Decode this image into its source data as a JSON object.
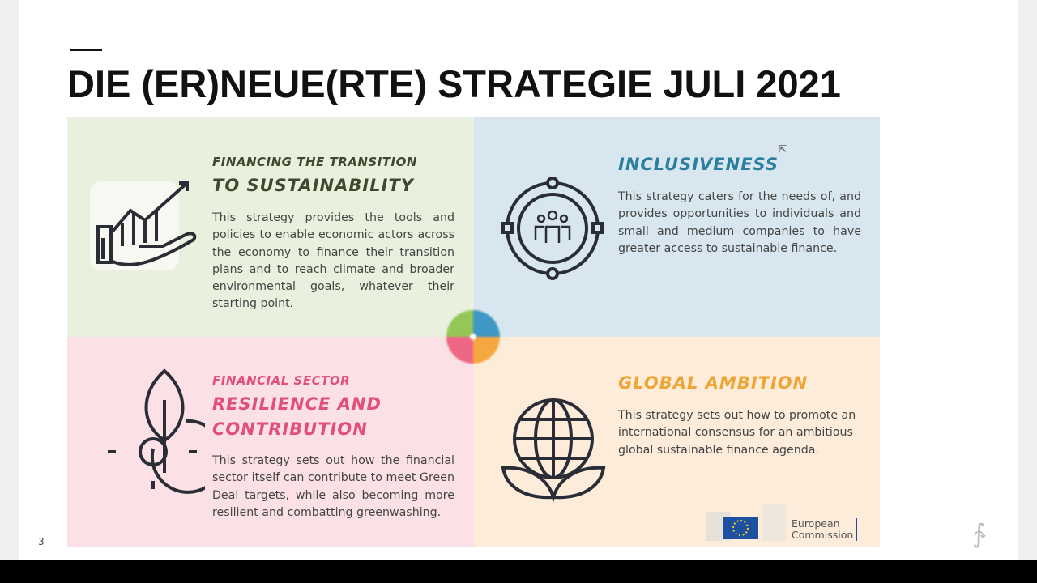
{
  "slide": {
    "title": "DIE (ER)NEUE(RTE) STRATEGIE JULI 2021",
    "page_number": "3"
  },
  "panels": [
    {
      "subtitle": "FINANCING THE TRANSITION",
      "heading": "TO SUSTAINABILITY",
      "body": "This strategy provides the tools and policies to enable economic actors across the economy to finance their transition plans and to reach climate and broader environmental goals, whatever their starting point.",
      "icon": "hand-growth-chart-icon",
      "color": "#3d4a2e",
      "bg": "#e9f0dd"
    },
    {
      "heading": "INCLUSIVENESS",
      "body": "This strategy caters for the needs of, and provides opportunities to individuals and small and medium companies to have greater access to sustainable finance.",
      "icon": "people-circle-icon",
      "color": "#2a7f9e",
      "bg": "#d8e7ef"
    },
    {
      "subtitle": "FINANCIAL SECTOR",
      "heading": "RESILIENCE AND CONTRIBUTION",
      "body": "This strategy sets out how the financial sector itself can contribute to meet Green Deal targets, while also becoming more resilient and combatting greenwashing.",
      "icon": "gear-leaf-icon",
      "color": "#e0507a",
      "bg": "#fbe1e6"
    },
    {
      "heading": "GLOBAL AMBITION",
      "body": "This strategy sets out how to promote an international consensus for an ambitious global sustainable finance agenda.",
      "icon": "globe-leaves-icon",
      "color": "#eea535",
      "bg": "#fcecd9"
    }
  ],
  "logo": {
    "text": "European Commission",
    "line1": "European",
    "line2": "Commission",
    "flag_color": "#1f4fa0"
  }
}
